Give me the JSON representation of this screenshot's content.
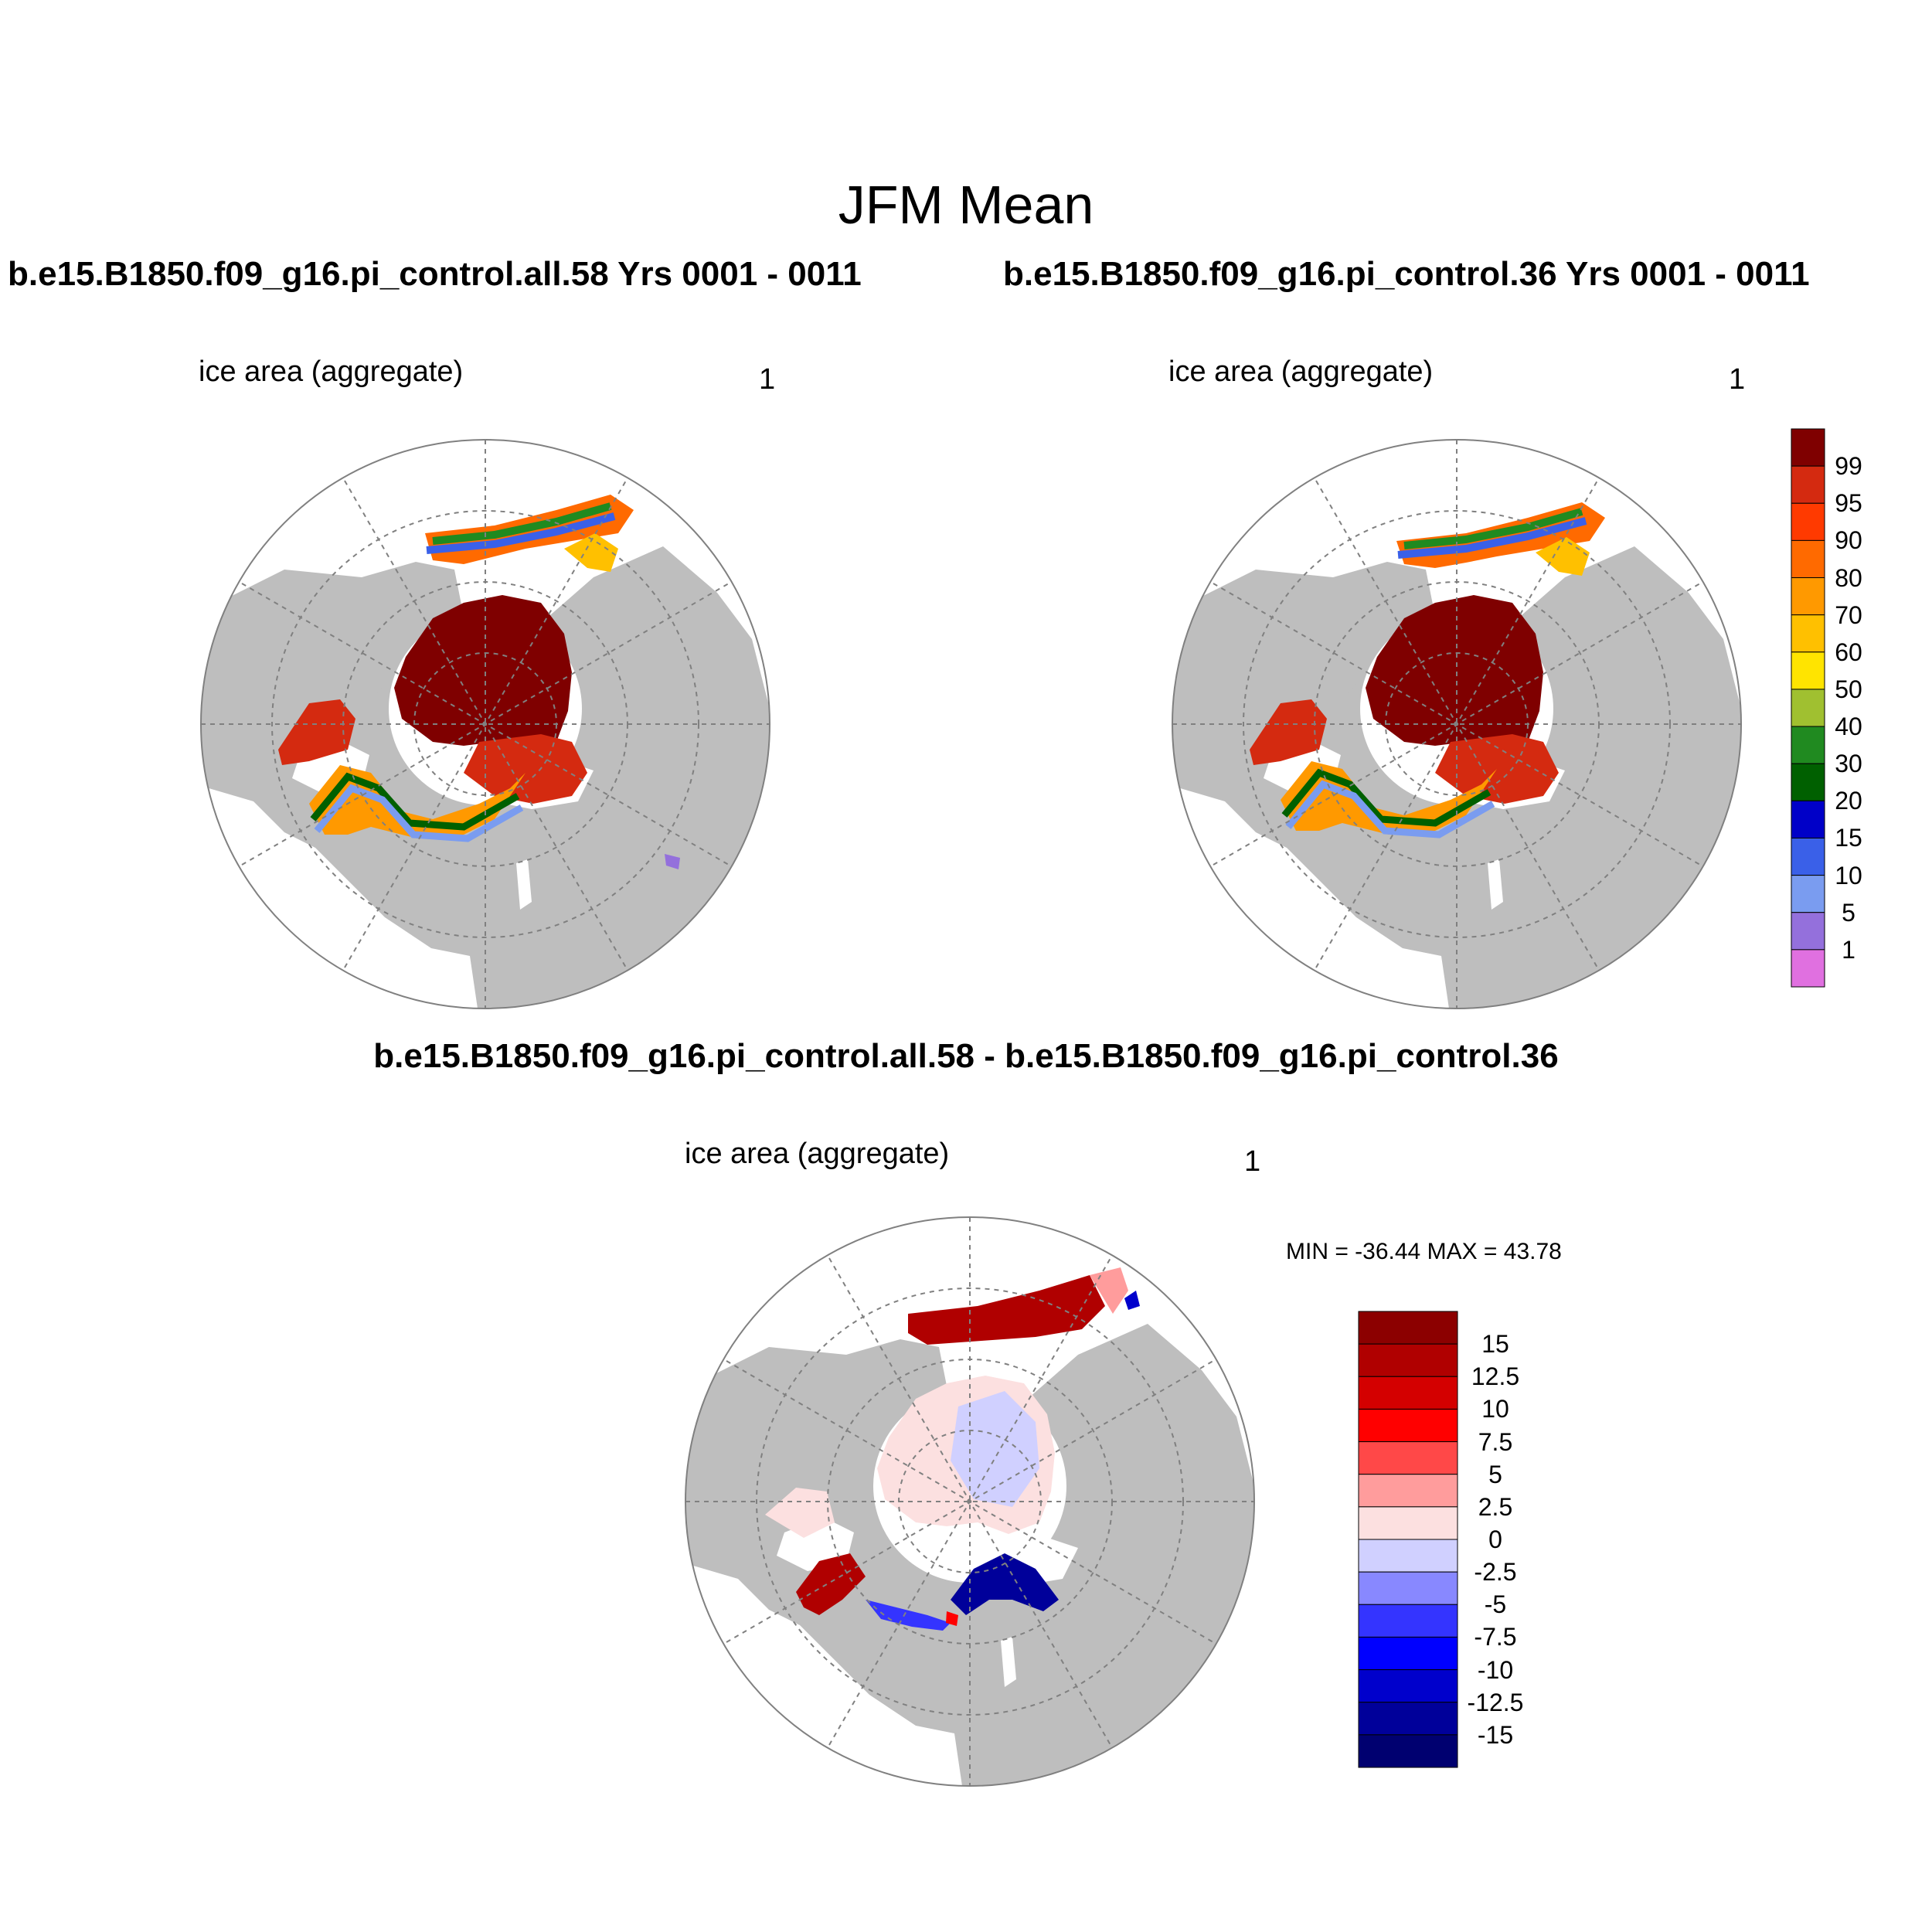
{
  "title": "JFM Mean",
  "panels": [
    {
      "header": "b.e15.B1850.f09_g16.pi_control.all.58  Yrs 0001 - 0011",
      "variable": "ice area  (aggregate)",
      "units": "1"
    },
    {
      "header": "b.e15.B1850.f09_g16.pi_control.36  Yrs 0001 - 0011",
      "variable": "ice area  (aggregate)",
      "units": "1"
    },
    {
      "header": "b.e15.B1850.f09_g16.pi_control.all.58 - b.e15.B1850.f09_g16.pi_control.36",
      "variable": "ice area  (aggregate)",
      "units": "1",
      "minmax": "MIN = -36.44 MAX =  43.78"
    }
  ],
  "colorbar_abs": {
    "labels": [
      "99",
      "95",
      "90",
      "80",
      "70",
      "60",
      "50",
      "40",
      "30",
      "20",
      "15",
      "10",
      "5",
      "1"
    ],
    "colors": [
      "#7f0000",
      "#d42a10",
      "#ff3a00",
      "#ff6a00",
      "#ff9900",
      "#ffc000",
      "#ffe400",
      "#a0c030",
      "#208a20",
      "#006000",
      "#0000c8",
      "#3a60e8",
      "#7a9cf0",
      "#9470dc",
      "#e070e0"
    ]
  },
  "colorbar_diff": {
    "labels": [
      "15",
      "12.5",
      "10",
      "7.5",
      "5",
      "2.5",
      "0",
      "-2.5",
      "-5",
      "-7.5",
      "-10",
      "-12.5",
      "-15"
    ],
    "colors": [
      "#8c0000",
      "#b00000",
      "#d40000",
      "#ff0000",
      "#ff4848",
      "#ff9c9c",
      "#fce0e0",
      "#d0d0ff",
      "#8888ff",
      "#3434ff",
      "#0000ff",
      "#0000cc",
      "#00009a",
      "#000070"
    ]
  },
  "colors": {
    "land": "#bebebe",
    "ocean": "#ffffff",
    "grid": "#808080"
  }
}
